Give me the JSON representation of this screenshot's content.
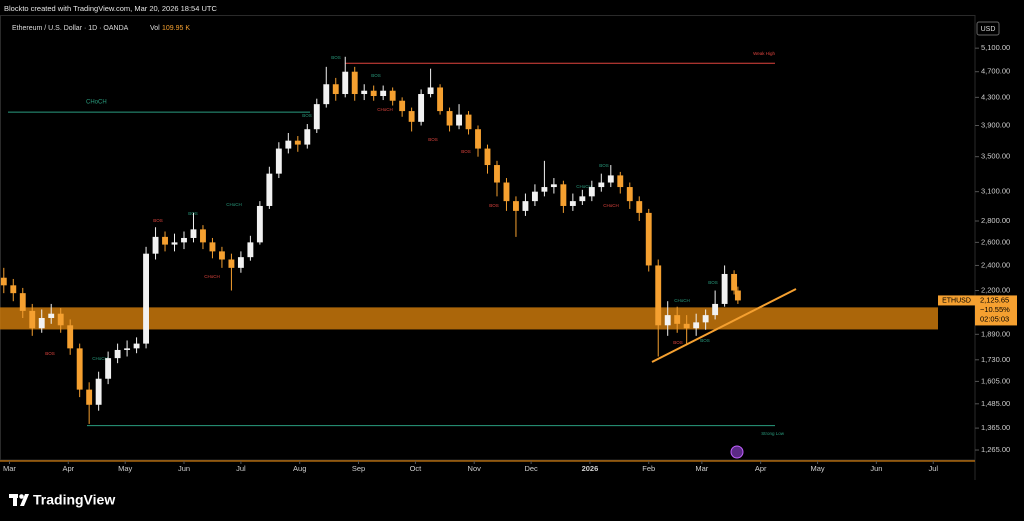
{
  "header": "Blockto created with TradingView.com, Mar 20, 2026 18:54 UTC",
  "brand": "TradingView",
  "chart_data": {
    "type": "candlestick",
    "title": "Ethereum / U.S. Dollar · 1D · OANDA",
    "volume_label": "Vol",
    "volume_value": "109.95 K",
    "axis_unit": "USD",
    "symbol": "ETHUSD",
    "last_price": {
      "value": 2125.65,
      "label": "2,125.65"
    },
    "change": "−10.55%",
    "countdown": "02:05:03",
    "log_scale": true,
    "up_color": "#f2f2f2",
    "down_color": "#f5a030",
    "xlim": [
      -5,
      509
    ],
    "ylim": [
      1222,
      5722
    ],
    "xticks": [
      {
        "value": 0,
        "label": "Mar"
      },
      {
        "value": 31,
        "label": "Apr"
      },
      {
        "value": 61,
        "label": "May"
      },
      {
        "value": 92,
        "label": "Jun"
      },
      {
        "value": 122,
        "label": "Jul"
      },
      {
        "value": 153,
        "label": "Aug"
      },
      {
        "value": 184,
        "label": "Sep"
      },
      {
        "value": 214,
        "label": "Oct"
      },
      {
        "value": 245,
        "label": "Nov"
      },
      {
        "value": 275,
        "label": "Dec"
      },
      {
        "value": 306,
        "label": "2026"
      },
      {
        "value": 337,
        "label": "Feb"
      },
      {
        "value": 365,
        "label": "Mar"
      },
      {
        "value": 396,
        "label": "Apr"
      },
      {
        "value": 426,
        "label": "May"
      },
      {
        "value": 457,
        "label": "Jun"
      },
      {
        "value": 487,
        "label": "Jul"
      }
    ],
    "yticks": [
      {
        "value": 5100,
        "label": "5,100.00"
      },
      {
        "value": 4700,
        "label": "4,700.00"
      },
      {
        "value": 4300,
        "label": "4,300.00"
      },
      {
        "value": 3900,
        "label": "3,900.00"
      },
      {
        "value": 3500,
        "label": "3,500.00"
      },
      {
        "value": 3100,
        "label": "3,100.00"
      },
      {
        "value": 2800,
        "label": "2,800.00"
      },
      {
        "value": 2600,
        "label": "2,600.00"
      },
      {
        "value": 2400,
        "label": "2,400.00"
      },
      {
        "value": 2200,
        "label": "2,200.00"
      },
      {
        "value": 1890,
        "label": "1,890.00"
      },
      {
        "value": 1730,
        "label": "1,730.00"
      },
      {
        "value": 1605,
        "label": "1,605.00"
      },
      {
        "value": 1485,
        "label": "1,485.00"
      },
      {
        "value": 1365,
        "label": "1,365.00"
      },
      {
        "value": 1265,
        "label": "1,265.00"
      }
    ],
    "x": [
      -3,
      2,
      7,
      12,
      17,
      22,
      27,
      32,
      37,
      42,
      47,
      52,
      57,
      62,
      67,
      72,
      77,
      82,
      87,
      92,
      97,
      102,
      107,
      112,
      117,
      122,
      127,
      132,
      137,
      142,
      147,
      152,
      157,
      162,
      167,
      172,
      177,
      182,
      187,
      192,
      197,
      202,
      207,
      212,
      217,
      222,
      227,
      232,
      237,
      242,
      247,
      252,
      257,
      262,
      267,
      272,
      277,
      282,
      287,
      292,
      297,
      302,
      307,
      312,
      317,
      322,
      327,
      332,
      337,
      342,
      347,
      352,
      357,
      362,
      367,
      372,
      377,
      382,
      384
    ],
    "open": [
      2300,
      2240,
      2180,
      2050,
      1930,
      2000,
      2030,
      1950,
      1800,
      1560,
      1480,
      1620,
      1740,
      1790,
      1800,
      1830,
      2500,
      2650,
      2580,
      2600,
      2640,
      2720,
      2600,
      2520,
      2450,
      2380,
      2470,
      2600,
      2950,
      3300,
      3600,
      3700,
      3650,
      3850,
      4200,
      4500,
      4350,
      4700,
      4350,
      4400,
      4320,
      4400,
      4250,
      4100,
      3950,
      4350,
      4450,
      4100,
      3900,
      4050,
      3850,
      3600,
      3400,
      3200,
      3000,
      2900,
      3000,
      3100,
      3150,
      3180,
      2950,
      3000,
      3050,
      3150,
      3200,
      3280,
      3150,
      3000,
      2880,
      2400,
      1950,
      2020,
      1960,
      1930,
      1970,
      2020,
      2100,
      2330,
      2200
    ],
    "high": [
      2380,
      2290,
      2220,
      2100,
      2060,
      2100,
      2070,
      1990,
      1830,
      1600,
      1660,
      1780,
      1830,
      1850,
      1870,
      2560,
      2740,
      2700,
      2680,
      2700,
      2880,
      2760,
      2640,
      2560,
      2500,
      2520,
      2660,
      3000,
      3380,
      3680,
      3800,
      3760,
      3920,
      4280,
      4780,
      4600,
      4950,
      4780,
      4500,
      4480,
      4480,
      4450,
      4300,
      4150,
      4420,
      4750,
      4500,
      4150,
      4200,
      4100,
      3900,
      3650,
      3450,
      3250,
      3050,
      3080,
      3180,
      3450,
      3250,
      3220,
      3080,
      3120,
      3220,
      3300,
      3400,
      3320,
      3200,
      3050,
      2920,
      2450,
      2120,
      2080,
      2020,
      2030,
      2060,
      2200,
      2400,
      2360,
      2230
    ],
    "low": [
      2180,
      2120,
      2000,
      1880,
      1900,
      1960,
      1900,
      1760,
      1520,
      1385,
      1450,
      1590,
      1710,
      1750,
      1770,
      1800,
      2450,
      2520,
      2520,
      2540,
      2600,
      2540,
      2460,
      2380,
      2200,
      2340,
      2440,
      2580,
      2920,
      3250,
      3540,
      3560,
      3600,
      3800,
      4150,
      4250,
      4300,
      4250,
      4260,
      4250,
      4260,
      4180,
      4020,
      3820,
      3900,
      4300,
      4050,
      3820,
      3850,
      3780,
      3500,
      3300,
      3050,
      2900,
      2650,
      2850,
      2950,
      3050,
      3080,
      2880,
      2900,
      2960,
      3000,
      3100,
      3150,
      3080,
      2920,
      2800,
      2350,
      1750,
      1880,
      1900,
      1820,
      1880,
      1920,
      1990,
      2080,
      2170,
      2100
    ],
    "close": [
      2240,
      2180,
      2050,
      1930,
      2000,
      2030,
      1950,
      1800,
      1560,
      1480,
      1620,
      1740,
      1790,
      1800,
      1830,
      2500,
      2650,
      2580,
      2600,
      2640,
      2720,
      2600,
      2520,
      2450,
      2380,
      2470,
      2600,
      2950,
      3300,
      3600,
      3700,
      3650,
      3850,
      4200,
      4500,
      4350,
      4700,
      4350,
      4400,
      4320,
      4400,
      4250,
      4100,
      3950,
      4350,
      4450,
      4100,
      3900,
      4050,
      3850,
      3600,
      3400,
      3200,
      3000,
      2900,
      3000,
      3100,
      3150,
      3180,
      2950,
      3000,
      3050,
      3150,
      3200,
      3280,
      3150,
      3000,
      2880,
      2400,
      1950,
      2020,
      1960,
      1930,
      1970,
      2020,
      2100,
      2330,
      2200,
      2125.65
    ],
    "zone": {
      "from": 1922,
      "to": 2075,
      "color": "#c9780c"
    },
    "levels": [
      {
        "name": "Weak High",
        "value": 4840,
        "color": "#e0443e"
      },
      {
        "name": "Strong Low",
        "value": 1377,
        "color": "#2a9d7f"
      },
      {
        "name": "CHoCH",
        "value": 4085,
        "color": "#2a9d7f"
      }
    ],
    "annotations": [
      {
        "text": "BOS",
        "color": "#2a9d7f"
      },
      {
        "text": "BOS",
        "color": "#2a9d7f"
      },
      {
        "text": "CHoCH",
        "color": "#e0443e"
      },
      {
        "text": "BOS",
        "color": "#e0443e"
      },
      {
        "text": "BOS",
        "color": "#e0443e"
      },
      {
        "text": "BOS",
        "color": "#2a9d7f"
      },
      {
        "text": "CHoCH",
        "color": "#2a9d7f"
      },
      {
        "text": "BOS",
        "color": "#2a9d7f"
      },
      {
        "text": "BOS",
        "color": "#e0443e"
      },
      {
        "text": "CHoCH",
        "color": "#e0443e"
      },
      {
        "text": "BOS",
        "color": "#e0443e"
      },
      {
        "text": "CHoCH",
        "color": "#2a9d7f"
      },
      {
        "text": "BOS",
        "color": "#2a9d7f"
      },
      {
        "text": "CHoCH",
        "color": "#2a9d7f"
      },
      {
        "text": "CHoCH",
        "color": "#e0443e"
      },
      {
        "text": "BOS",
        "color": "#e0443e"
      },
      {
        "text": "CHoCH",
        "color": "#2a9d7f"
      },
      {
        "text": "BOS",
        "color": "#2a9d7f"
      },
      {
        "text": "BOS",
        "color": "#e0443e"
      },
      {
        "text": "BOS",
        "color": "#2a9d7f"
      }
    ]
  }
}
